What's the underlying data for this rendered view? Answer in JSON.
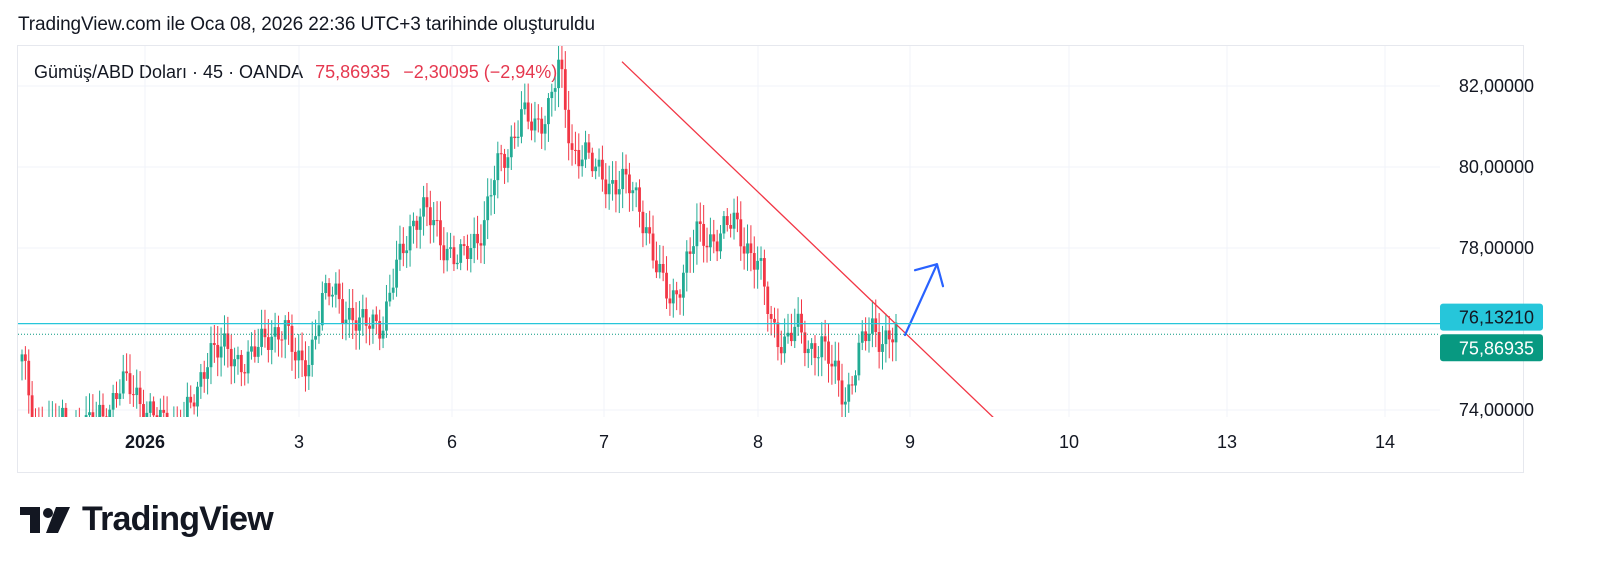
{
  "header": {
    "caption": "TradingView.com ile Oca 08, 2026 22:36 UTC+3 tarihinde oluşturuldu"
  },
  "legend": {
    "symbol": "Gümüş/ABD Doları · 45 · OANDA",
    "price": "75,86935",
    "change": "−2,30095 (−2,94%)"
  },
  "brand": {
    "name": "TradingView"
  },
  "colors": {
    "up": "#22ab94",
    "down": "#f23645",
    "trendline": "#f23645",
    "arrow": "#2962ff",
    "hline": "#26c6da",
    "price_tag": "#089981",
    "hline_tag": "#26c6da"
  },
  "chart_data": {
    "type": "candlestick",
    "title": "Gümüş/ABD Doları · 45 · OANDA",
    "y_axis": {
      "ticks": [
        "82,00000",
        "80,00000",
        "78,00000",
        "74,00000"
      ],
      "tick_values": [
        82,
        80,
        78,
        74
      ],
      "range": [
        73.8,
        82.7
      ]
    },
    "x_axis": {
      "ticks": [
        "2026",
        "3",
        "6",
        "7",
        "8",
        "9",
        "10",
        "13",
        "14"
      ],
      "bold_tick": "2026"
    },
    "price_labels": [
      {
        "label": "76,13210",
        "value": 76.1321,
        "kind": "horizontal-line"
      },
      {
        "label": "75,86935",
        "value": 75.86935,
        "kind": "last-price"
      }
    ],
    "trendline": {
      "from": {
        "date": "7",
        "value": 82.6
      },
      "to": {
        "date": "9 (after)",
        "value": 73.8
      }
    },
    "arrow": {
      "direction": "up",
      "near_date": "9",
      "from_value": 76.0,
      "to_value": 77.6
    },
    "close_path": [
      [
        0,
        75.2
      ],
      [
        1,
        73.6
      ],
      [
        2,
        73.5
      ],
      [
        3,
        73.7
      ],
      [
        4,
        73.6
      ],
      [
        5,
        73.5
      ],
      [
        6,
        73.8
      ],
      [
        7,
        74.1
      ],
      [
        8,
        74.6
      ],
      [
        9,
        74.5
      ],
      [
        10,
        74.0
      ],
      [
        11,
        73.7
      ],
      [
        12,
        73.5
      ],
      [
        13,
        73.8
      ],
      [
        14,
        74.3
      ],
      [
        15,
        75.6
      ],
      [
        16,
        75.5
      ],
      [
        17,
        75.2
      ],
      [
        18,
        75.3
      ],
      [
        19,
        75.5
      ],
      [
        20,
        75.9
      ],
      [
        21,
        76.1
      ],
      [
        22,
        75.1
      ],
      [
        23,
        75.3
      ],
      [
        24,
        76.6
      ],
      [
        25,
        77.0
      ],
      [
        26,
        76.4
      ],
      [
        27,
        76.0
      ],
      [
        28,
        76.3
      ],
      [
        29,
        76.1
      ],
      [
        30,
        77.5
      ],
      [
        31,
        78.5
      ],
      [
        32,
        78.9
      ],
      [
        33,
        78.6
      ],
      [
        34,
        78.0
      ],
      [
        35,
        77.6
      ],
      [
        36,
        78.1
      ],
      [
        37,
        78.6
      ],
      [
        38,
        79.9
      ],
      [
        39,
        80.5
      ],
      [
        40,
        81.3
      ],
      [
        41,
        80.9
      ],
      [
        42,
        81.4
      ],
      [
        43,
        82.5
      ],
      [
        44,
        80.3
      ],
      [
        45,
        80.5
      ],
      [
        46,
        79.8
      ],
      [
        47,
        79.6
      ],
      [
        48,
        79.7
      ],
      [
        49,
        79.3
      ],
      [
        50,
        78.6
      ],
      [
        51,
        77.3
      ],
      [
        52,
        76.6
      ],
      [
        53,
        77.5
      ],
      [
        54,
        78.3
      ],
      [
        55,
        78.2
      ],
      [
        56,
        78.4
      ],
      [
        57,
        78.6
      ],
      [
        58,
        78.1
      ],
      [
        59,
        77.6
      ],
      [
        60,
        76.1
      ],
      [
        61,
        75.7
      ],
      [
        62,
        76.0
      ],
      [
        63,
        75.5
      ],
      [
        64,
        75.7
      ],
      [
        65,
        74.9
      ],
      [
        66,
        74.3
      ],
      [
        67,
        75.4
      ],
      [
        68,
        76.0
      ],
      [
        69,
        75.8
      ],
      [
        70,
        75.87
      ]
    ]
  }
}
